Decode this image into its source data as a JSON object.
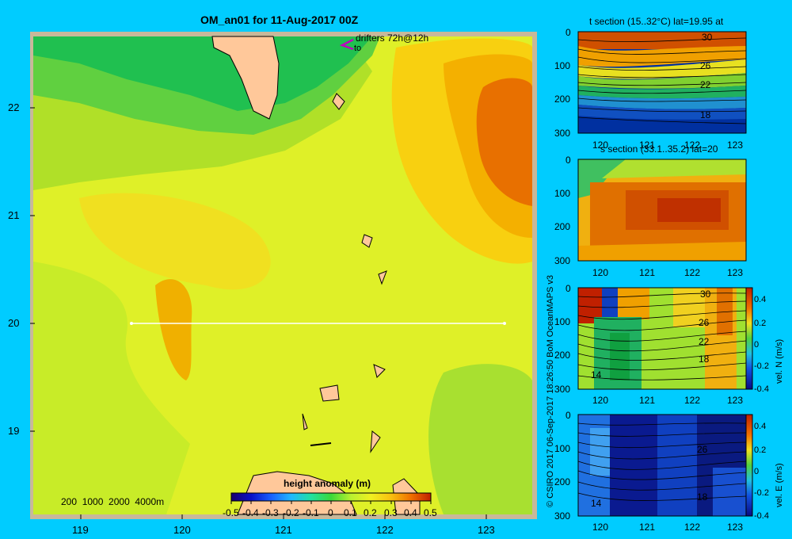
{
  "main_map": {
    "title": "OM_an01 for 11-Aug-2017 00Z",
    "drifters_label": "drifters 72h@12h",
    "drifters_sub": "to",
    "lat_ticks": [
      "22",
      "21",
      "20",
      "19"
    ],
    "lon_ticks": [
      "119",
      "120",
      "121",
      "122",
      "123"
    ],
    "depth_legend": "200  1000  2000  4000m",
    "colorbar_title": "height anomaly  (m)",
    "colorbar_ticks": [
      "-0.5",
      "-0.4",
      "-0.3",
      "-0.2",
      "-0.1",
      "0",
      "0.1",
      "0.2",
      "0.3",
      "0.4",
      "0.5"
    ],
    "section_line": {
      "lat": 20,
      "lon_start": 119.5,
      "lon_end": 123.2
    }
  },
  "credit": "© CSIRO 2017   06-Sep-2017 18:26:50 BoM OceanMAPS v3",
  "panels": [
    {
      "title": "t section (15..32°C) lat=19.95 at",
      "y_ticks": [
        "0",
        "100",
        "200",
        "300"
      ],
      "x_ticks": [
        "120",
        "121",
        "122",
        "123"
      ],
      "contour_labels": [
        "30",
        "26",
        "22",
        "18"
      ]
    },
    {
      "title": "s section (33.1..35.2) lat=20",
      "y_ticks": [
        "0",
        "100",
        "200",
        "300"
      ],
      "x_ticks": [
        "120",
        "121",
        "122",
        "123"
      ],
      "contour_labels": []
    },
    {
      "title": "",
      "y_ticks": [
        "0",
        "100",
        "200",
        "300"
      ],
      "x_ticks": [
        "120",
        "121",
        "122",
        "123"
      ],
      "contour_labels": [
        "30",
        "26",
        "22",
        "18",
        "14"
      ],
      "colorbar_label": "vel. N  (m/s)",
      "colorbar_ticks": [
        "0.4",
        "0.2",
        "0",
        "-0.2",
        "-0.4"
      ]
    },
    {
      "title": "",
      "y_ticks": [
        "0",
        "100",
        "200",
        "300"
      ],
      "x_ticks": [
        "120",
        "121",
        "122",
        "123"
      ],
      "contour_labels": [
        "26",
        "18",
        "14"
      ],
      "colorbar_label": "vel. E  (m/s)",
      "colorbar_ticks": [
        "0.4",
        "0.2",
        "0",
        "-0.2",
        "-0.4"
      ]
    }
  ],
  "colors": {
    "background": "#00ccff",
    "land": "#ffc89a",
    "shelf": "#bfae98",
    "frame": "#c8b89a"
  }
}
